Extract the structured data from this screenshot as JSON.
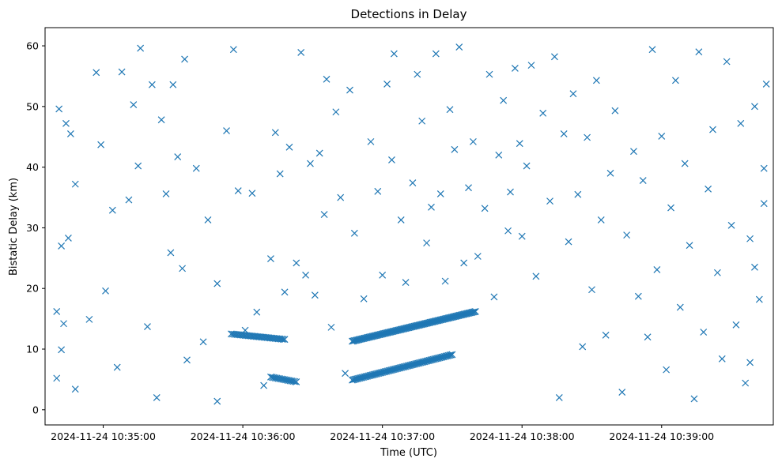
{
  "chart_data": {
    "type": "scatter",
    "title": "Detections in Delay",
    "xlabel": "Time (UTC)",
    "ylabel": "Bistatic Delay (km)",
    "x_is_time": true,
    "xlim": [
      "2024-11-24 10:34:35",
      "2024-11-24 10:39:48"
    ],
    "ylim": [
      -2.5,
      63
    ],
    "grid": false,
    "marker": "x",
    "color": "#1f77b4",
    "x_ticks": [
      "2024-11-24 10:35:00",
      "2024-11-24 10:36:00",
      "2024-11-24 10:37:00",
      "2024-11-24 10:38:00",
      "2024-11-24 10:39:00"
    ],
    "y_ticks": [
      0,
      10,
      20,
      30,
      40,
      50,
      60
    ],
    "tracks": [
      {
        "x_start": "2024-11-24 10:35:55",
        "x_end": "2024-11-24 10:36:18",
        "y_start": 12.5,
        "y_end": 11.6,
        "points": 35
      },
      {
        "x_start": "2024-11-24 10:36:12",
        "x_end": "2024-11-24 10:36:23",
        "y_start": 5.4,
        "y_end": 4.6,
        "points": 18
      },
      {
        "x_start": "2024-11-24 10:36:47",
        "x_end": "2024-11-24 10:37:40",
        "y_start": 11.3,
        "y_end": 16.2,
        "points": 110
      },
      {
        "x_start": "2024-11-24 10:36:47",
        "x_end": "2024-11-24 10:37:30",
        "y_start": 4.9,
        "y_end": 9.1,
        "points": 80
      }
    ],
    "scatter_points": [
      [
        "2024-11-24 10:34:41",
        49.6
      ],
      [
        "2024-11-24 10:34:44",
        47.2
      ],
      [
        "2024-11-24 10:34:46",
        45.5
      ],
      [
        "2024-11-24 10:34:48",
        37.2
      ],
      [
        "2024-11-24 10:34:42",
        27.0
      ],
      [
        "2024-11-24 10:34:45",
        28.3
      ],
      [
        "2024-11-24 10:34:40",
        16.2
      ],
      [
        "2024-11-24 10:34:43",
        14.2
      ],
      [
        "2024-11-24 10:34:42",
        9.9
      ],
      [
        "2024-11-24 10:34:40",
        5.2
      ],
      [
        "2024-11-24 10:34:48",
        3.4
      ],
      [
        "2024-11-24 10:34:54",
        14.9
      ],
      [
        "2024-11-24 10:34:57",
        55.6
      ],
      [
        "2024-11-24 10:34:59",
        43.7
      ],
      [
        "2024-11-24 10:35:01",
        19.6
      ],
      [
        "2024-11-24 10:35:04",
        32.9
      ],
      [
        "2024-11-24 10:35:06",
        7.0
      ],
      [
        "2024-11-24 10:35:08",
        55.7
      ],
      [
        "2024-11-24 10:35:11",
        34.6
      ],
      [
        "2024-11-24 10:35:13",
        50.3
      ],
      [
        "2024-11-24 10:35:15",
        40.2
      ],
      [
        "2024-11-24 10:35:16",
        59.6
      ],
      [
        "2024-11-24 10:35:19",
        13.7
      ],
      [
        "2024-11-24 10:35:21",
        53.6
      ],
      [
        "2024-11-24 10:35:23",
        2.0
      ],
      [
        "2024-11-24 10:35:25",
        47.8
      ],
      [
        "2024-11-24 10:35:27",
        35.6
      ],
      [
        "2024-11-24 10:35:29",
        25.9
      ],
      [
        "2024-11-24 10:35:30",
        53.6
      ],
      [
        "2024-11-24 10:35:32",
        41.7
      ],
      [
        "2024-11-24 10:35:34",
        23.3
      ],
      [
        "2024-11-24 10:35:35",
        57.8
      ],
      [
        "2024-11-24 10:35:36",
        8.2
      ],
      [
        "2024-11-24 10:35:40",
        39.8
      ],
      [
        "2024-11-24 10:35:43",
        11.2
      ],
      [
        "2024-11-24 10:35:45",
        31.3
      ],
      [
        "2024-11-24 10:35:49",
        1.4
      ],
      [
        "2024-11-24 10:35:49",
        20.8
      ],
      [
        "2024-11-24 10:35:53",
        46.0
      ],
      [
        "2024-11-24 10:35:56",
        59.4
      ],
      [
        "2024-11-24 10:35:58",
        36.1
      ],
      [
        "2024-11-24 10:36:01",
        13.1
      ],
      [
        "2024-11-24 10:36:04",
        35.7
      ],
      [
        "2024-11-24 10:36:06",
        16.1
      ],
      [
        "2024-11-24 10:36:09",
        4.0
      ],
      [
        "2024-11-24 10:36:12",
        24.9
      ],
      [
        "2024-11-24 10:36:14",
        45.7
      ],
      [
        "2024-11-24 10:36:16",
        38.9
      ],
      [
        "2024-11-24 10:36:18",
        19.4
      ],
      [
        "2024-11-24 10:36:20",
        43.3
      ],
      [
        "2024-11-24 10:36:23",
        24.2
      ],
      [
        "2024-11-24 10:36:25",
        58.9
      ],
      [
        "2024-11-24 10:36:27",
        22.2
      ],
      [
        "2024-11-24 10:36:29",
        40.6
      ],
      [
        "2024-11-24 10:36:31",
        18.9
      ],
      [
        "2024-11-24 10:36:33",
        42.3
      ],
      [
        "2024-11-24 10:36:35",
        32.2
      ],
      [
        "2024-11-24 10:36:36",
        54.5
      ],
      [
        "2024-11-24 10:36:38",
        13.6
      ],
      [
        "2024-11-24 10:36:40",
        49.1
      ],
      [
        "2024-11-24 10:36:42",
        35.0
      ],
      [
        "2024-11-24 10:36:44",
        6.0
      ],
      [
        "2024-11-24 10:36:46",
        52.7
      ],
      [
        "2024-11-24 10:36:48",
        29.1
      ],
      [
        "2024-11-24 10:36:52",
        18.3
      ],
      [
        "2024-11-24 10:36:55",
        44.2
      ],
      [
        "2024-11-24 10:36:58",
        36.0
      ],
      [
        "2024-11-24 10:37:00",
        22.2
      ],
      [
        "2024-11-24 10:37:02",
        53.7
      ],
      [
        "2024-11-24 10:37:04",
        41.2
      ],
      [
        "2024-11-24 10:37:05",
        58.7
      ],
      [
        "2024-11-24 10:37:08",
        31.3
      ],
      [
        "2024-11-24 10:37:10",
        21.0
      ],
      [
        "2024-11-24 10:37:13",
        37.4
      ],
      [
        "2024-11-24 10:37:15",
        55.3
      ],
      [
        "2024-11-24 10:37:17",
        47.6
      ],
      [
        "2024-11-24 10:37:19",
        27.5
      ],
      [
        "2024-11-24 10:37:21",
        33.4
      ],
      [
        "2024-11-24 10:37:23",
        58.7
      ],
      [
        "2024-11-24 10:37:25",
        35.6
      ],
      [
        "2024-11-24 10:37:27",
        21.2
      ],
      [
        "2024-11-24 10:37:29",
        49.5
      ],
      [
        "2024-11-24 10:37:31",
        42.9
      ],
      [
        "2024-11-24 10:37:33",
        59.8
      ],
      [
        "2024-11-24 10:37:35",
        24.2
      ],
      [
        "2024-11-24 10:37:37",
        36.6
      ],
      [
        "2024-11-24 10:37:39",
        44.2
      ],
      [
        "2024-11-24 10:37:41",
        25.3
      ],
      [
        "2024-11-24 10:37:44",
        33.2
      ],
      [
        "2024-11-24 10:37:46",
        55.3
      ],
      [
        "2024-11-24 10:37:48",
        18.6
      ],
      [
        "2024-11-24 10:37:50",
        42.0
      ],
      [
        "2024-11-24 10:37:52",
        51.0
      ],
      [
        "2024-11-24 10:37:54",
        29.5
      ],
      [
        "2024-11-24 10:37:55",
        35.9
      ],
      [
        "2024-11-24 10:37:57",
        56.3
      ],
      [
        "2024-11-24 10:37:59",
        43.9
      ],
      [
        "2024-11-24 10:38:00",
        28.6
      ],
      [
        "2024-11-24 10:38:02",
        40.2
      ],
      [
        "2024-11-24 10:38:04",
        56.8
      ],
      [
        "2024-11-24 10:38:06",
        22.0
      ],
      [
        "2024-11-24 10:38:09",
        48.9
      ],
      [
        "2024-11-24 10:38:12",
        34.4
      ],
      [
        "2024-11-24 10:38:14",
        58.2
      ],
      [
        "2024-11-24 10:38:16",
        2.0
      ],
      [
        "2024-11-24 10:38:18",
        45.5
      ],
      [
        "2024-11-24 10:38:20",
        27.7
      ],
      [
        "2024-11-24 10:38:22",
        52.1
      ],
      [
        "2024-11-24 10:38:24",
        35.5
      ],
      [
        "2024-11-24 10:38:26",
        10.4
      ],
      [
        "2024-11-24 10:38:28",
        44.9
      ],
      [
        "2024-11-24 10:38:30",
        19.8
      ],
      [
        "2024-11-24 10:38:32",
        54.3
      ],
      [
        "2024-11-24 10:38:34",
        31.3
      ],
      [
        "2024-11-24 10:38:36",
        12.3
      ],
      [
        "2024-11-24 10:38:38",
        39.0
      ],
      [
        "2024-11-24 10:38:40",
        49.3
      ],
      [
        "2024-11-24 10:38:43",
        2.9
      ],
      [
        "2024-11-24 10:38:45",
        28.8
      ],
      [
        "2024-11-24 10:38:48",
        42.6
      ],
      [
        "2024-11-24 10:38:50",
        18.7
      ],
      [
        "2024-11-24 10:38:52",
        37.8
      ],
      [
        "2024-11-24 10:38:54",
        12.0
      ],
      [
        "2024-11-24 10:38:56",
        59.4
      ],
      [
        "2024-11-24 10:38:58",
        23.1
      ],
      [
        "2024-11-24 10:39:00",
        45.1
      ],
      [
        "2024-11-24 10:39:02",
        6.6
      ],
      [
        "2024-11-24 10:39:04",
        33.3
      ],
      [
        "2024-11-24 10:39:06",
        54.3
      ],
      [
        "2024-11-24 10:39:08",
        16.9
      ],
      [
        "2024-11-24 10:39:10",
        40.6
      ],
      [
        "2024-11-24 10:39:12",
        27.1
      ],
      [
        "2024-11-24 10:39:14",
        1.8
      ],
      [
        "2024-11-24 10:39:16",
        59.0
      ],
      [
        "2024-11-24 10:39:18",
        12.8
      ],
      [
        "2024-11-24 10:39:20",
        36.4
      ],
      [
        "2024-11-24 10:39:22",
        46.2
      ],
      [
        "2024-11-24 10:39:24",
        22.6
      ],
      [
        "2024-11-24 10:39:26",
        8.4
      ],
      [
        "2024-11-24 10:39:28",
        57.4
      ],
      [
        "2024-11-24 10:39:30",
        30.4
      ],
      [
        "2024-11-24 10:39:32",
        14.0
      ],
      [
        "2024-11-24 10:39:34",
        47.2
      ],
      [
        "2024-11-24 10:39:36",
        4.4
      ],
      [
        "2024-11-24 10:39:38",
        28.2
      ],
      [
        "2024-11-24 10:39:40",
        50.0
      ],
      [
        "2024-11-24 10:39:42",
        18.2
      ],
      [
        "2024-11-24 10:39:44",
        39.8
      ],
      [
        "2024-11-24 10:39:45",
        53.7
      ],
      [
        "2024-11-24 10:39:44",
        34.0
      ],
      [
        "2024-11-24 10:39:40",
        23.5
      ],
      [
        "2024-11-24 10:39:38",
        7.8
      ]
    ]
  }
}
